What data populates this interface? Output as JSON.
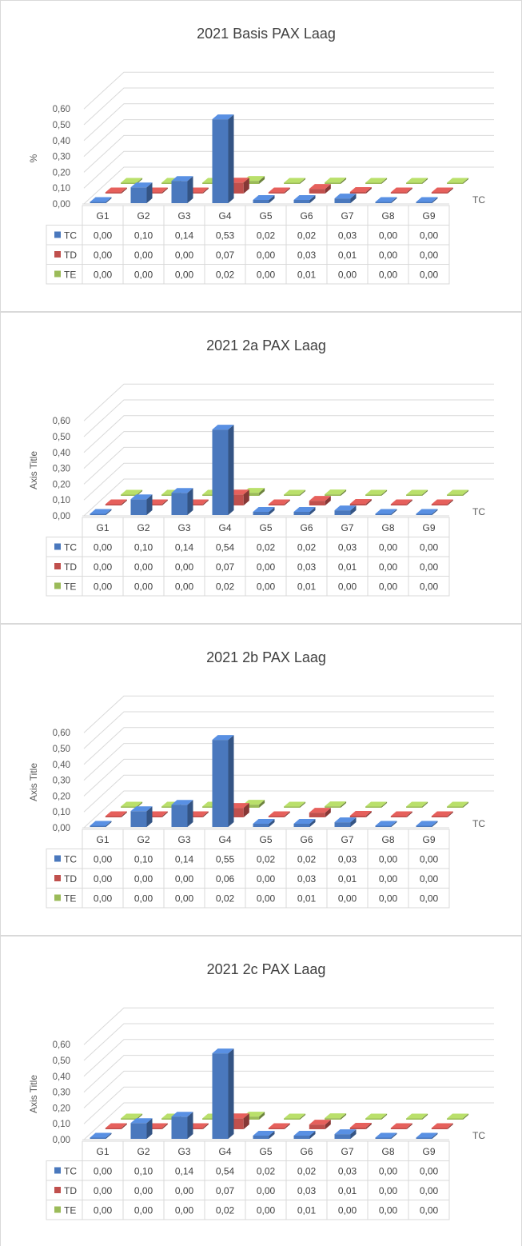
{
  "colors": {
    "TC": "#4a78bd",
    "TD": "#c0504d",
    "TE": "#9bbb59"
  },
  "chart_data": [
    {
      "type": "bar",
      "title": "2021 Basis PAX Laag",
      "ylabel": "%",
      "depth_axis_label": "TC",
      "ylim": [
        0,
        0.6
      ],
      "yticks": [
        "0,00",
        "0,10",
        "0,20",
        "0,30",
        "0,40",
        "0,50",
        "0,60"
      ],
      "categories": [
        "G1",
        "G2",
        "G3",
        "G4",
        "G5",
        "G6",
        "G7",
        "G8",
        "G9"
      ],
      "series": [
        {
          "name": "TC",
          "values": [
            0.0,
            0.1,
            0.14,
            0.53,
            0.02,
            0.02,
            0.03,
            0.0,
            0.0
          ],
          "labels": [
            "0,00",
            "0,10",
            "0,14",
            "0,53",
            "0,02",
            "0,02",
            "0,03",
            "0,00",
            "0,00"
          ]
        },
        {
          "name": "TD",
          "values": [
            0.0,
            0.0,
            0.0,
            0.07,
            0.0,
            0.03,
            0.01,
            0.0,
            0.0
          ],
          "labels": [
            "0,00",
            "0,00",
            "0,00",
            "0,07",
            "0,00",
            "0,03",
            "0,01",
            "0,00",
            "0,00"
          ]
        },
        {
          "name": "TE",
          "values": [
            0.0,
            0.0,
            0.0,
            0.02,
            0.0,
            0.01,
            0.0,
            0.0,
            0.0
          ],
          "labels": [
            "0,00",
            "0,00",
            "0,00",
            "0,02",
            "0,00",
            "0,01",
            "0,00",
            "0,00",
            "0,00"
          ]
        }
      ]
    },
    {
      "type": "bar",
      "title": "2021 2a PAX Laag",
      "ylabel": "Axis Title",
      "depth_axis_label": "TC",
      "ylim": [
        0,
        0.6
      ],
      "yticks": [
        "0,00",
        "0,10",
        "0,20",
        "0,30",
        "0,40",
        "0,50",
        "0,60"
      ],
      "categories": [
        "G1",
        "G2",
        "G3",
        "G4",
        "G5",
        "G6",
        "G7",
        "G8",
        "G9"
      ],
      "series": [
        {
          "name": "TC",
          "values": [
            0.0,
            0.1,
            0.14,
            0.54,
            0.02,
            0.02,
            0.03,
            0.0,
            0.0
          ],
          "labels": [
            "0,00",
            "0,10",
            "0,14",
            "0,54",
            "0,02",
            "0,02",
            "0,03",
            "0,00",
            "0,00"
          ]
        },
        {
          "name": "TD",
          "values": [
            0.0,
            0.0,
            0.0,
            0.07,
            0.0,
            0.03,
            0.01,
            0.0,
            0.0
          ],
          "labels": [
            "0,00",
            "0,00",
            "0,00",
            "0,07",
            "0,00",
            "0,03",
            "0,01",
            "0,00",
            "0,00"
          ]
        },
        {
          "name": "TE",
          "values": [
            0.0,
            0.0,
            0.0,
            0.02,
            0.0,
            0.01,
            0.0,
            0.0,
            0.0
          ],
          "labels": [
            "0,00",
            "0,00",
            "0,00",
            "0,02",
            "0,00",
            "0,01",
            "0,00",
            "0,00",
            "0,00"
          ]
        }
      ]
    },
    {
      "type": "bar",
      "title": "2021 2b PAX Laag",
      "ylabel": "Axis Title",
      "depth_axis_label": "TC",
      "ylim": [
        0,
        0.6
      ],
      "yticks": [
        "0,00",
        "0,10",
        "0,20",
        "0,30",
        "0,40",
        "0,50",
        "0,60"
      ],
      "categories": [
        "G1",
        "G2",
        "G3",
        "G4",
        "G5",
        "G6",
        "G7",
        "G8",
        "G9"
      ],
      "series": [
        {
          "name": "TC",
          "values": [
            0.0,
            0.1,
            0.14,
            0.55,
            0.02,
            0.02,
            0.03,
            0.0,
            0.0
          ],
          "labels": [
            "0,00",
            "0,10",
            "0,14",
            "0,55",
            "0,02",
            "0,02",
            "0,03",
            "0,00",
            "0,00"
          ]
        },
        {
          "name": "TD",
          "values": [
            0.0,
            0.0,
            0.0,
            0.06,
            0.0,
            0.03,
            0.01,
            0.0,
            0.0
          ],
          "labels": [
            "0,00",
            "0,00",
            "0,00",
            "0,06",
            "0,00",
            "0,03",
            "0,01",
            "0,00",
            "0,00"
          ]
        },
        {
          "name": "TE",
          "values": [
            0.0,
            0.0,
            0.0,
            0.02,
            0.0,
            0.01,
            0.0,
            0.0,
            0.0
          ],
          "labels": [
            "0,00",
            "0,00",
            "0,00",
            "0,02",
            "0,00",
            "0,01",
            "0,00",
            "0,00",
            "0,00"
          ]
        }
      ]
    },
    {
      "type": "bar",
      "title": "2021 2c PAX Laag",
      "ylabel": "Axis Title",
      "depth_axis_label": "TC",
      "ylim": [
        0,
        0.6
      ],
      "yticks": [
        "0,00",
        "0,10",
        "0,20",
        "0,30",
        "0,40",
        "0,50",
        "0,60"
      ],
      "categories": [
        "G1",
        "G2",
        "G3",
        "G4",
        "G5",
        "G6",
        "G7",
        "G8",
        "G9"
      ],
      "series": [
        {
          "name": "TC",
          "values": [
            0.0,
            0.1,
            0.14,
            0.54,
            0.02,
            0.02,
            0.03,
            0.0,
            0.0
          ],
          "labels": [
            "0,00",
            "0,10",
            "0,14",
            "0,54",
            "0,02",
            "0,02",
            "0,03",
            "0,00",
            "0,00"
          ]
        },
        {
          "name": "TD",
          "values": [
            0.0,
            0.0,
            0.0,
            0.07,
            0.0,
            0.03,
            0.01,
            0.0,
            0.0
          ],
          "labels": [
            "0,00",
            "0,00",
            "0,00",
            "0,07",
            "0,00",
            "0,03",
            "0,01",
            "0,00",
            "0,00"
          ]
        },
        {
          "name": "TE",
          "values": [
            0.0,
            0.0,
            0.0,
            0.02,
            0.0,
            0.01,
            0.0,
            0.0,
            0.0
          ],
          "labels": [
            "0,00",
            "0,00",
            "0,00",
            "0,02",
            "0,00",
            "0,01",
            "0,00",
            "0,00",
            "0,00"
          ]
        }
      ]
    }
  ]
}
